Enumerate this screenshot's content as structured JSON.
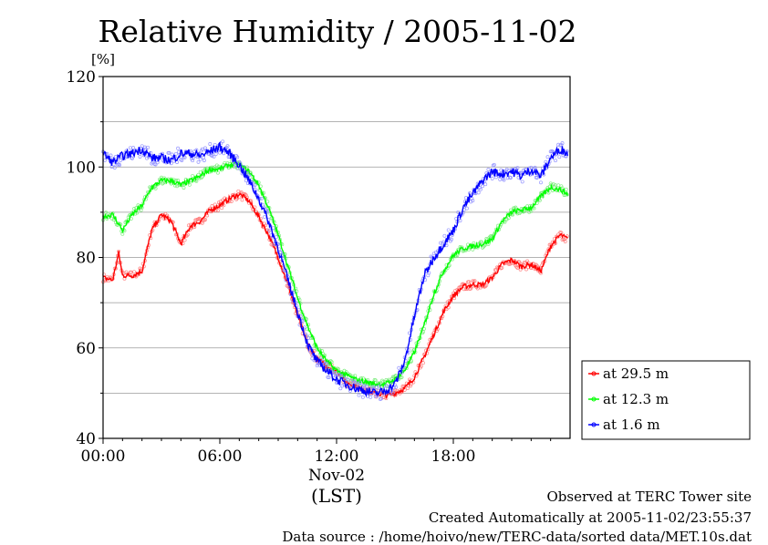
{
  "chart_data": {
    "type": "line",
    "title": "Relative Humidity / 2005-11-02",
    "ylabel": "[%]",
    "xlabel_date": "Nov-02",
    "xlabel_unit": "(LST)",
    "ylim": [
      40,
      120
    ],
    "yticks": [
      "40",
      "60",
      "80",
      "100",
      "120"
    ],
    "xlim_hours": [
      0,
      24
    ],
    "xticks": [
      {
        "hour": 0,
        "label": "00:00"
      },
      {
        "hour": 6,
        "label": "06:00"
      },
      {
        "hour": 12,
        "label": "12:00"
      },
      {
        "hour": 18,
        "label": "18:00"
      }
    ],
    "grid": true,
    "legend_position": "right",
    "series": [
      {
        "name": "at 29.5 m",
        "color": "#ff0000",
        "x": [
          0,
          0.5,
          0.8,
          1.0,
          1.5,
          2.0,
          2.5,
          3.0,
          3.5,
          4.0,
          4.5,
          5.0,
          5.5,
          6.0,
          6.5,
          7.0,
          7.5,
          8.0,
          8.5,
          9.0,
          9.5,
          10.0,
          10.5,
          11.0,
          11.5,
          12.0,
          12.5,
          13.0,
          13.5,
          14.0,
          14.5,
          15.0,
          15.5,
          16.0,
          16.5,
          17.0,
          17.5,
          18.0,
          18.5,
          19.0,
          19.5,
          20.0,
          20.5,
          21.0,
          21.5,
          22.0,
          22.5,
          23.0,
          23.5,
          23.9
        ],
        "values": [
          75.5,
          75,
          81,
          76,
          76,
          77,
          86,
          89.5,
          88,
          83,
          87,
          88,
          90.5,
          91.5,
          93,
          94,
          92.5,
          89,
          85,
          80,
          74,
          67,
          61,
          57.5,
          56,
          55,
          52.5,
          51.5,
          50.5,
          50,
          49.5,
          50,
          51,
          53.5,
          58,
          63,
          68,
          71.5,
          73.5,
          74,
          74,
          75.5,
          78.5,
          79.5,
          78,
          78.5,
          77,
          82.5,
          85,
          84
        ]
      },
      {
        "name": "at 12.3 m",
        "color": "#00ff00",
        "x": [
          0,
          0.5,
          1.0,
          1.5,
          2.0,
          2.5,
          3.0,
          3.5,
          4.0,
          4.5,
          5.0,
          5.5,
          6.0,
          6.5,
          7.0,
          7.5,
          8.0,
          8.5,
          9.0,
          9.5,
          10.0,
          10.5,
          11.0,
          11.5,
          12.0,
          12.5,
          13.0,
          13.5,
          14.0,
          14.5,
          15.0,
          15.5,
          16.0,
          16.5,
          17.0,
          17.5,
          18.0,
          18.5,
          19.0,
          19.5,
          20.0,
          20.5,
          21.0,
          21.5,
          22.0,
          22.5,
          23.0,
          23.5,
          23.9
        ],
        "values": [
          89,
          89.5,
          86,
          89.5,
          91.5,
          95.5,
          97,
          97,
          96,
          97,
          98,
          99.5,
          99.5,
          100.5,
          100.5,
          99,
          96,
          91,
          85,
          78,
          71,
          65,
          60,
          57,
          55,
          54,
          53,
          52.5,
          52,
          52,
          53,
          55,
          59,
          65,
          72,
          77,
          80.5,
          82,
          82.5,
          83,
          84,
          88,
          90,
          90.5,
          91,
          93.5,
          95.5,
          95,
          94
        ]
      },
      {
        "name": "at 1.6 m",
        "color": "#0000ff",
        "x": [
          0,
          0.5,
          1.0,
          1.5,
          2.0,
          2.5,
          3.0,
          3.5,
          4.0,
          4.5,
          5.0,
          5.5,
          6.0,
          6.5,
          7.0,
          7.5,
          8.0,
          8.5,
          9.0,
          9.5,
          10.0,
          10.5,
          11.0,
          11.5,
          12.0,
          12.5,
          13.0,
          13.5,
          14.0,
          14.5,
          15.0,
          15.5,
          16.0,
          16.5,
          17.0,
          17.5,
          18.0,
          18.5,
          19.0,
          19.5,
          20.0,
          20.5,
          21.0,
          21.5,
          22.0,
          22.5,
          23.0,
          23.5,
          23.9
        ],
        "values": [
          103,
          101,
          102.5,
          103,
          104,
          102,
          102,
          101.5,
          103,
          103,
          102.5,
          103.5,
          104.5,
          103,
          100.5,
          97,
          93,
          88,
          82,
          75,
          68,
          61,
          57,
          55,
          53,
          52,
          51,
          50.5,
          50,
          50.5,
          52,
          57,
          67,
          76,
          80,
          83,
          86,
          91,
          94,
          97,
          99,
          98.5,
          99,
          98,
          99.5,
          98,
          102,
          104,
          103
        ]
      }
    ]
  },
  "footer": {
    "line1": "Observed at TERC Tower site",
    "line2": "Created Automatically at 2005-11-02/23:55:37",
    "line3": "Data source : /home/hoivo/new/TERC-data/sorted  data/MET.10s.dat"
  }
}
